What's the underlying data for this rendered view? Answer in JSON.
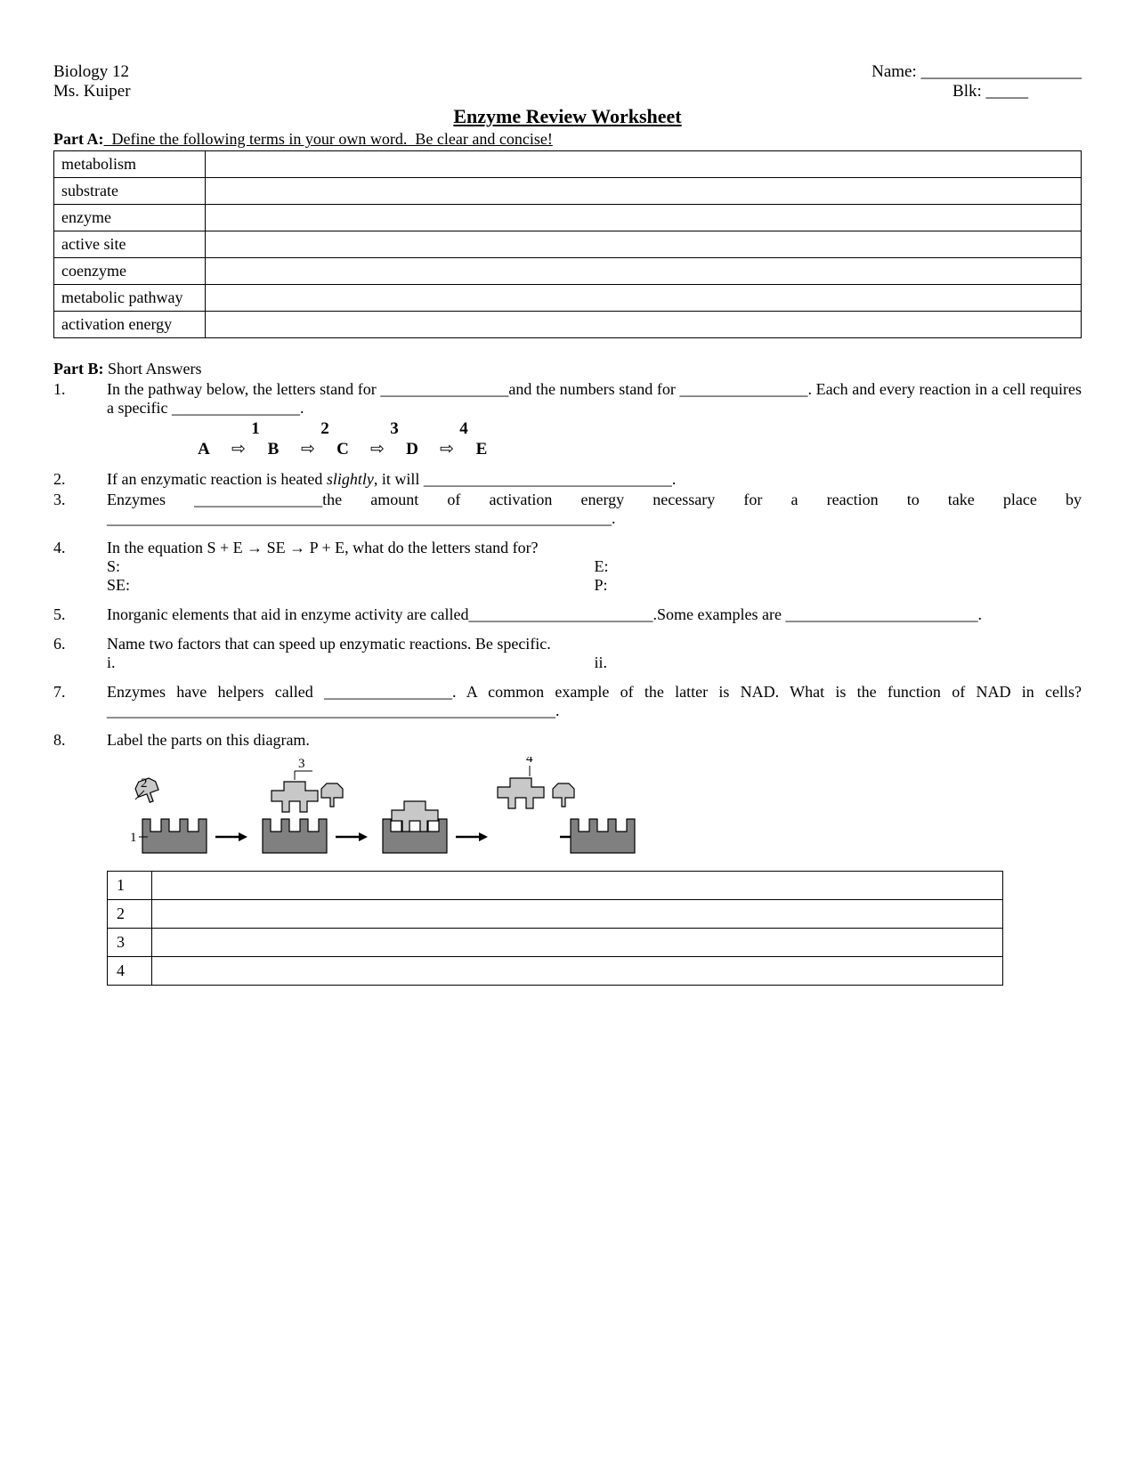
{
  "header": {
    "course": "Biology 12",
    "teacher": "Ms. Kuiper",
    "name_label": "Name:",
    "name_blank": " ___________________",
    "blk_label": "Blk:",
    "blk_blank": " _____"
  },
  "title": "Enzyme Review Worksheet",
  "partA": {
    "label": "Part A:",
    "instruction": "  Define the following terms in your own word.  Be clear and concise!",
    "terms": [
      "metabolism",
      "substrate",
      "enzyme",
      "active site",
      "coenzyme",
      "metabolic pathway",
      "activation energy"
    ]
  },
  "partB": {
    "label": "Part B:",
    "heading": "  Short Answers",
    "q1": {
      "num": "1.",
      "text_a": "In the pathway below, the letters stand for ",
      "blank1": "________________",
      "text_b": "and the numbers stand for ",
      "blank2": "________________",
      "text_c": ".  Each and every reaction in a cell requires a specific ",
      "blank3": "________________",
      "text_d": ".",
      "pathway_nums": [
        "1",
        "2",
        "3",
        "4"
      ],
      "pathway_lets": [
        "A",
        "B",
        "C",
        "D",
        "E"
      ],
      "arrow": "⇨"
    },
    "q2": {
      "num": "2.",
      "text_a": "If an enzymatic reaction is heated ",
      "italic": "slightly",
      "text_b": ", it will ",
      "blank": "_______________________________",
      "text_c": "."
    },
    "q3": {
      "num": "3.",
      "text_a": "Enzymes ",
      "blank1": "________________",
      "text_b": "the amount of activation energy necessary for a reaction to take place by ",
      "blank2": "_______________________________________________________________",
      "text_c": "."
    },
    "q4": {
      "num": "4.",
      "text": "In the equation S + E → SE → P + E, what do the letters stand for?",
      "S": "S:",
      "E": "E:",
      "SE": "SE:",
      "P": "P:"
    },
    "q5": {
      "num": "5.",
      "text_a": "Inorganic elements that aid in enzyme activity are called",
      "blank1": "_______________________",
      "text_b": ".Some examples are ",
      "blank2": "________________________",
      "text_c": "."
    },
    "q6": {
      "num": "6.",
      "text": "Name two factors that can speed up enzymatic reactions. Be specific.",
      "i": "i.",
      "ii": "ii."
    },
    "q7": {
      "num": "7.",
      "text_a": "Enzymes have helpers called ",
      "blank1": "________________",
      "text_b": ".  A common example of the latter is NAD.  What is the function of NAD in cells? ",
      "blank2": "________________________________________________________",
      "text_c": "."
    },
    "q8": {
      "num": "8.",
      "text": "Label the parts on this diagram.",
      "labels": [
        "1",
        "2",
        "3",
        "4"
      ]
    }
  },
  "diagram": {
    "enzyme_fill": "#808080",
    "enzyme_stroke": "#000000",
    "substrate_fill": "#c8c8c8",
    "substrate_stroke": "#000000",
    "bg": "#ffffff",
    "arrow_color": "#000000",
    "label_font": 15,
    "callouts": {
      "1": "1",
      "2": "2",
      "3": "3",
      "4": "4"
    }
  }
}
